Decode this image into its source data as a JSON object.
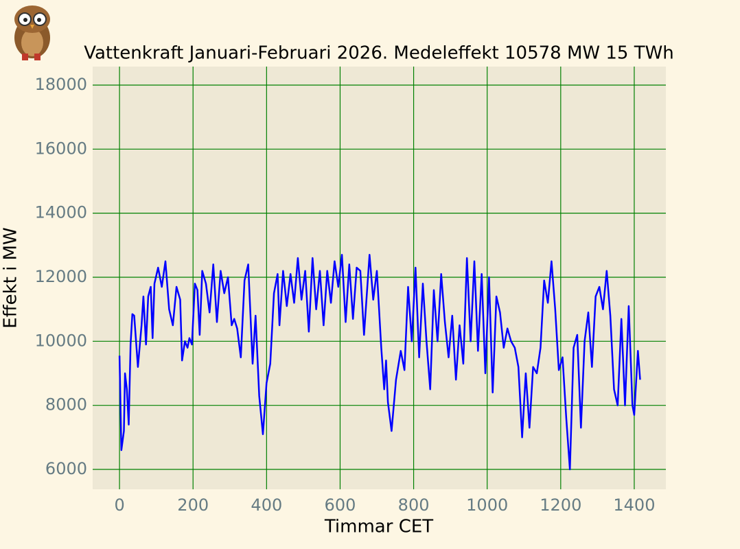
{
  "chart_data": {
    "type": "line",
    "title": "Vattenkraft Januari-Februari 2026. Medeleffekt 10578 MW 15 TWh",
    "x_label": "Timmar CET",
    "y_label": "Effekt i MW",
    "x": [
      0,
      5,
      12,
      15,
      20,
      25,
      30,
      35,
      40,
      50,
      60,
      65,
      72,
      78,
      85,
      90,
      95,
      105,
      115,
      125,
      135,
      145,
      155,
      165,
      170,
      178,
      185,
      190,
      197,
      205,
      212,
      218,
      225,
      235,
      245,
      255,
      265,
      275,
      285,
      295,
      305,
      312,
      320,
      330,
      340,
      350,
      362,
      370,
      380,
      390,
      400,
      410,
      420,
      430,
      435,
      445,
      455,
      465,
      475,
      485,
      495,
      505,
      515,
      525,
      535,
      545,
      555,
      565,
      575,
      585,
      595,
      605,
      615,
      625,
      635,
      645,
      655,
      665,
      680,
      690,
      700,
      712,
      720,
      725,
      730,
      740,
      752,
      765,
      775,
      785,
      795,
      805,
      815,
      825,
      835,
      845,
      855,
      865,
      875,
      885,
      895,
      905,
      915,
      925,
      935,
      945,
      955,
      965,
      975,
      985,
      995,
      1005,
      1015,
      1025,
      1035,
      1045,
      1055,
      1065,
      1075,
      1085,
      1095,
      1105,
      1115,
      1125,
      1135,
      1145,
      1155,
      1165,
      1175,
      1185,
      1195,
      1205,
      1215,
      1225,
      1235,
      1245,
      1255,
      1265,
      1275,
      1285,
      1295,
      1305,
      1315,
      1325,
      1335,
      1345,
      1355,
      1365,
      1375,
      1385,
      1395,
      1400,
      1410,
      1416
    ],
    "series": [
      {
        "name": "Vattenkraft",
        "color": "#0000ff",
        "values": [
          9550,
          6600,
          7200,
          9000,
          8500,
          7400,
          9900,
          10850,
          10800,
          9200,
          10500,
          11400,
          9900,
          11400,
          11700,
          10100,
          11800,
          12300,
          11700,
          12500,
          11000,
          10500,
          11700,
          11300,
          9400,
          10000,
          9800,
          10100,
          9900,
          11800,
          11600,
          10200,
          12200,
          11800,
          10900,
          12400,
          10600,
          12200,
          11500,
          12000,
          10500,
          10700,
          10400,
          9500,
          11900,
          12400,
          9300,
          10800,
          8300,
          7100,
          8700,
          9300,
          11500,
          12100,
          10500,
          12200,
          11100,
          12100,
          11200,
          12600,
          11300,
          12200,
          10300,
          12600,
          11000,
          12200,
          10500,
          12200,
          11200,
          12500,
          11700,
          12700,
          10600,
          12400,
          10700,
          12300,
          12200,
          10200,
          12700,
          11300,
          12200,
          9800,
          8500,
          9400,
          8100,
          7200,
          8800,
          9700,
          9100,
          11700,
          10000,
          12300,
          9500,
          11800,
          10000,
          8500,
          11600,
          10000,
          12100,
          10600,
          9500,
          10800,
          8800,
          10500,
          9300,
          12600,
          10000,
          12500,
          9700,
          12100,
          9000,
          12000,
          8400,
          11400,
          10900,
          9800,
          10400,
          10000,
          9800,
          9200,
          7000,
          9000,
          7300,
          9200,
          9000,
          9800,
          11900,
          11200,
          12500,
          11000,
          9100,
          9500,
          7600,
          6000,
          9800,
          10200,
          7300,
          10000,
          10900,
          9200,
          11400,
          11700,
          11000,
          12200,
          10800,
          8500,
          8000,
          10700,
          8000,
          11100,
          8000,
          7700,
          9700,
          8800
        ]
      }
    ],
    "xlim": [
      -73,
      1486
    ],
    "ylim": [
      5379,
      18578
    ],
    "xticks": [
      0,
      200,
      400,
      600,
      800,
      1000,
      1200,
      1400
    ],
    "yticks": [
      6000,
      8000,
      10000,
      12000,
      14000,
      16000,
      18000
    ],
    "grid": true
  }
}
